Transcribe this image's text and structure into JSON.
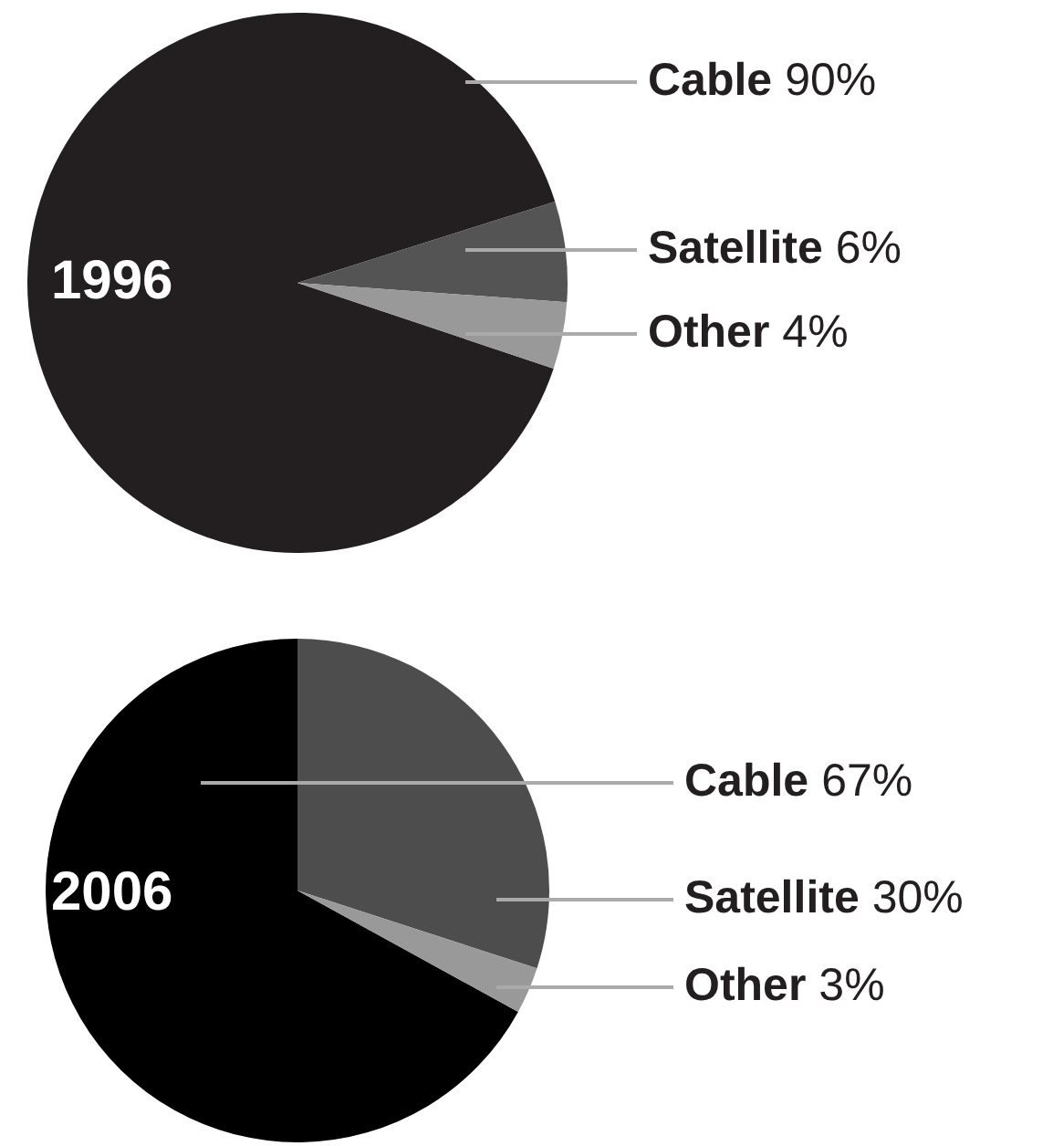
{
  "chart_data": [
    {
      "type": "pie",
      "title": "1996",
      "categories": [
        "Cable",
        "Satellite",
        "Other"
      ],
      "values": [
        90,
        6,
        4
      ],
      "colors": [
        "#231f20",
        "#545454",
        "#999999"
      ],
      "value_labels": [
        "90%",
        "6%",
        "4%"
      ]
    },
    {
      "type": "pie",
      "title": "2006",
      "categories": [
        "Cable",
        "Satellite",
        "Other"
      ],
      "values": [
        67,
        30,
        3
      ],
      "colors": [
        "#000000",
        "#4d4d4d",
        "#999999"
      ],
      "value_labels": [
        "67%",
        "30%",
        "3%"
      ]
    }
  ]
}
